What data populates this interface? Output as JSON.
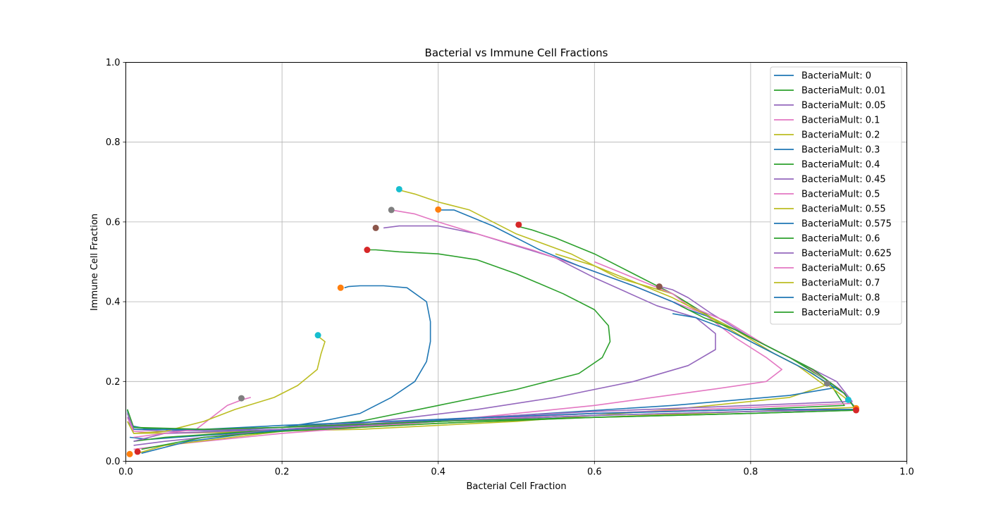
{
  "chart_data": {
    "type": "line",
    "title": "Bacterial vs Immune Cell Fractions",
    "xlabel": "Bacterial Cell Fraction",
    "ylabel": "Immune Cell Fraction",
    "xlim": [
      0,
      1
    ],
    "ylim": [
      0,
      1
    ],
    "xticks": [
      "0.0",
      "0.2",
      "0.4",
      "0.6",
      "0.8",
      "1.0"
    ],
    "yticks": [
      "0.0",
      "0.2",
      "0.4",
      "0.6",
      "0.8",
      "1.0"
    ],
    "grid": true,
    "legend_position": "upper right",
    "series": [
      {
        "name": "BacteriaMult: 0",
        "color": "#1f77b4"
      },
      {
        "name": "BacteriaMult: 0.01",
        "color": "#2ca02c"
      },
      {
        "name": "BacteriaMult: 0.05",
        "color": "#9467bd"
      },
      {
        "name": "BacteriaMult: 0.1",
        "color": "#e377c2"
      },
      {
        "name": "BacteriaMult: 0.2",
        "color": "#bcbd22"
      },
      {
        "name": "BacteriaMult: 0.3",
        "color": "#1f77b4"
      },
      {
        "name": "BacteriaMult: 0.4",
        "color": "#2ca02c"
      },
      {
        "name": "BacteriaMult: 0.45",
        "color": "#9467bd"
      },
      {
        "name": "BacteriaMult: 0.5",
        "color": "#e377c2"
      },
      {
        "name": "BacteriaMult: 0.55",
        "color": "#bcbd22"
      },
      {
        "name": "BacteriaMult: 0.575",
        "color": "#1f77b4"
      },
      {
        "name": "BacteriaMult: 0.6",
        "color": "#2ca02c"
      },
      {
        "name": "BacteriaMult: 0.625",
        "color": "#9467bd"
      },
      {
        "name": "BacteriaMult: 0.65",
        "color": "#e377c2"
      },
      {
        "name": "BacteriaMult: 0.7",
        "color": "#bcbd22"
      },
      {
        "name": "BacteriaMult: 0.8",
        "color": "#1f77b4"
      },
      {
        "name": "BacteriaMult: 0.9",
        "color": "#2ca02c"
      }
    ],
    "trajectories": [
      {
        "color": "#1f77b4",
        "points": [
          [
            0.002,
            0.13
          ],
          [
            0.005,
            0.09
          ],
          [
            0.03,
            0.08
          ],
          [
            0.1,
            0.077
          ],
          [
            0.15,
            0.079
          ],
          [
            0.2,
            0.085
          ],
          [
            0.25,
            0.1
          ],
          [
            0.3,
            0.12
          ],
          [
            0.34,
            0.16
          ],
          [
            0.37,
            0.2
          ],
          [
            0.385,
            0.25
          ],
          [
            0.39,
            0.3
          ],
          [
            0.39,
            0.35
          ],
          [
            0.385,
            0.4
          ],
          [
            0.36,
            0.435
          ],
          [
            0.33,
            0.44
          ],
          [
            0.3,
            0.44
          ],
          [
            0.285,
            0.438
          ],
          [
            0.28,
            0.435
          ]
        ]
      },
      {
        "color": "#2ca02c",
        "points": [
          [
            0.002,
            0.13
          ],
          [
            0.01,
            0.085
          ],
          [
            0.05,
            0.08
          ],
          [
            0.12,
            0.08
          ],
          [
            0.2,
            0.085
          ],
          [
            0.3,
            0.1
          ],
          [
            0.4,
            0.14
          ],
          [
            0.5,
            0.18
          ],
          [
            0.58,
            0.22
          ],
          [
            0.61,
            0.26
          ],
          [
            0.62,
            0.3
          ],
          [
            0.618,
            0.34
          ],
          [
            0.6,
            0.38
          ],
          [
            0.56,
            0.42
          ],
          [
            0.5,
            0.47
          ],
          [
            0.45,
            0.505
          ],
          [
            0.4,
            0.52
          ],
          [
            0.35,
            0.525
          ],
          [
            0.32,
            0.53
          ],
          [
            0.31,
            0.53
          ]
        ]
      },
      {
        "color": "#9467bd",
        "points": [
          [
            0.002,
            0.12
          ],
          [
            0.01,
            0.08
          ],
          [
            0.05,
            0.075
          ],
          [
            0.15,
            0.08
          ],
          [
            0.3,
            0.095
          ],
          [
            0.45,
            0.13
          ],
          [
            0.55,
            0.16
          ],
          [
            0.65,
            0.2
          ],
          [
            0.72,
            0.24
          ],
          [
            0.755,
            0.28
          ],
          [
            0.755,
            0.32
          ],
          [
            0.73,
            0.36
          ],
          [
            0.68,
            0.39
          ],
          [
            0.6,
            0.46
          ],
          [
            0.55,
            0.51
          ],
          [
            0.5,
            0.54
          ],
          [
            0.45,
            0.57
          ],
          [
            0.4,
            0.59
          ],
          [
            0.35,
            0.59
          ],
          [
            0.33,
            0.585
          ]
        ]
      },
      {
        "color": "#e377c2",
        "points": [
          [
            0.002,
            0.11
          ],
          [
            0.01,
            0.075
          ],
          [
            0.05,
            0.07
          ],
          [
            0.2,
            0.075
          ],
          [
            0.4,
            0.1
          ],
          [
            0.6,
            0.14
          ],
          [
            0.75,
            0.18
          ],
          [
            0.82,
            0.2
          ],
          [
            0.84,
            0.23
          ],
          [
            0.82,
            0.26
          ],
          [
            0.78,
            0.31
          ],
          [
            0.74,
            0.37
          ],
          [
            0.7,
            0.4
          ],
          [
            0.65,
            0.44
          ],
          [
            0.58,
            0.49
          ],
          [
            0.52,
            0.53
          ],
          [
            0.45,
            0.57
          ],
          [
            0.4,
            0.6
          ],
          [
            0.37,
            0.62
          ],
          [
            0.34,
            0.63
          ]
        ]
      },
      {
        "color": "#bcbd22",
        "points": [
          [
            0.002,
            0.1
          ],
          [
            0.01,
            0.07
          ],
          [
            0.1,
            0.072
          ],
          [
            0.3,
            0.08
          ],
          [
            0.5,
            0.1
          ],
          [
            0.7,
            0.13
          ],
          [
            0.85,
            0.16
          ],
          [
            0.895,
            0.19
          ],
          [
            0.86,
            0.24
          ],
          [
            0.8,
            0.3
          ],
          [
            0.74,
            0.37
          ],
          [
            0.7,
            0.42
          ],
          [
            0.63,
            0.46
          ],
          [
            0.57,
            0.52
          ],
          [
            0.5,
            0.57
          ],
          [
            0.44,
            0.63
          ],
          [
            0.4,
            0.65
          ],
          [
            0.37,
            0.67
          ],
          [
            0.35,
            0.68
          ]
        ]
      },
      {
        "color": "#1f77b4",
        "points": [
          [
            0.005,
            0.06
          ],
          [
            0.03,
            0.055
          ],
          [
            0.1,
            0.065
          ],
          [
            0.3,
            0.09
          ],
          [
            0.5,
            0.115
          ],
          [
            0.7,
            0.14
          ],
          [
            0.85,
            0.165
          ],
          [
            0.91,
            0.185
          ],
          [
            0.9,
            0.2
          ],
          [
            0.86,
            0.25
          ],
          [
            0.8,
            0.31
          ],
          [
            0.75,
            0.36
          ],
          [
            0.72,
            0.38
          ],
          [
            0.7,
            0.4
          ],
          [
            0.65,
            0.44
          ],
          [
            0.58,
            0.49
          ],
          [
            0.53,
            0.53
          ],
          [
            0.47,
            0.59
          ],
          [
            0.42,
            0.63
          ],
          [
            0.4,
            0.63
          ]
        ]
      },
      {
        "color": "#2ca02c",
        "points": [
          [
            0.01,
            0.05
          ],
          [
            0.05,
            0.06
          ],
          [
            0.2,
            0.08
          ],
          [
            0.4,
            0.1
          ],
          [
            0.6,
            0.12
          ],
          [
            0.8,
            0.13
          ],
          [
            0.92,
            0.14
          ],
          [
            0.9,
            0.2
          ],
          [
            0.85,
            0.26
          ],
          [
            0.8,
            0.31
          ],
          [
            0.75,
            0.36
          ],
          [
            0.7,
            0.42
          ],
          [
            0.65,
            0.47
          ],
          [
            0.6,
            0.52
          ],
          [
            0.55,
            0.56
          ],
          [
            0.52,
            0.58
          ],
          [
            0.5,
            0.59
          ]
        ]
      },
      {
        "color": "#9467bd",
        "points": [
          [
            0.01,
            0.04
          ],
          [
            0.05,
            0.05
          ],
          [
            0.2,
            0.08
          ],
          [
            0.4,
            0.105
          ],
          [
            0.6,
            0.125
          ],
          [
            0.8,
            0.14
          ],
          [
            0.93,
            0.15
          ],
          [
            0.91,
            0.2
          ],
          [
            0.86,
            0.25
          ],
          [
            0.8,
            0.31
          ],
          [
            0.75,
            0.37
          ],
          [
            0.72,
            0.41
          ],
          [
            0.7,
            0.43
          ],
          [
            0.68,
            0.44
          ]
        ]
      },
      {
        "color": "#e377c2",
        "points": [
          [
            0.01,
            0.03
          ],
          [
            0.05,
            0.04
          ],
          [
            0.2,
            0.07
          ],
          [
            0.4,
            0.1
          ],
          [
            0.6,
            0.12
          ],
          [
            0.8,
            0.135
          ],
          [
            0.93,
            0.145
          ],
          [
            0.915,
            0.18
          ],
          [
            0.87,
            0.24
          ],
          [
            0.82,
            0.29
          ],
          [
            0.77,
            0.35
          ],
          [
            0.72,
            0.39
          ],
          [
            0.7,
            0.42
          ],
          [
            0.65,
            0.46
          ],
          [
            0.6,
            0.5
          ]
        ]
      },
      {
        "color": "#bcbd22",
        "points": [
          [
            0.015,
            0.02
          ],
          [
            0.05,
            0.04
          ],
          [
            0.2,
            0.075
          ],
          [
            0.4,
            0.095
          ],
          [
            0.6,
            0.11
          ],
          [
            0.8,
            0.125
          ],
          [
            0.935,
            0.135
          ],
          [
            0.92,
            0.16
          ],
          [
            0.88,
            0.22
          ],
          [
            0.83,
            0.27
          ],
          [
            0.78,
            0.33
          ],
          [
            0.74,
            0.37
          ],
          [
            0.7,
            0.41
          ],
          [
            0.65,
            0.45
          ],
          [
            0.6,
            0.49
          ],
          [
            0.55,
            0.52
          ]
        ]
      },
      {
        "color": "#1f77b4",
        "points": [
          [
            0.02,
            0.02
          ],
          [
            0.08,
            0.05
          ],
          [
            0.2,
            0.08
          ],
          [
            0.4,
            0.1
          ],
          [
            0.6,
            0.115
          ],
          [
            0.8,
            0.125
          ],
          [
            0.935,
            0.13
          ],
          [
            0.92,
            0.17
          ],
          [
            0.87,
            0.23
          ],
          [
            0.82,
            0.28
          ],
          [
            0.77,
            0.33
          ],
          [
            0.73,
            0.36
          ],
          [
            0.7,
            0.37
          ]
        ]
      },
      {
        "color": "#2ca02c",
        "points": [
          [
            0.02,
            0.03
          ],
          [
            0.1,
            0.06
          ],
          [
            0.2,
            0.075
          ],
          [
            0.4,
            0.095
          ],
          [
            0.6,
            0.11
          ],
          [
            0.8,
            0.12
          ],
          [
            0.935,
            0.128
          ],
          [
            0.92,
            0.17
          ],
          [
            0.88,
            0.23
          ],
          [
            0.83,
            0.28
          ],
          [
            0.78,
            0.33
          ],
          [
            0.74,
            0.36
          ],
          [
            0.71,
            0.39
          ]
        ]
      },
      {
        "color": "#9467bd",
        "points": [
          [
            0.01,
            0.05
          ],
          [
            0.05,
            0.07
          ],
          [
            0.2,
            0.08
          ],
          [
            0.4,
            0.1
          ],
          [
            0.6,
            0.115
          ],
          [
            0.8,
            0.125
          ],
          [
            0.935,
            0.13
          ]
        ]
      },
      {
        "color": "#e377c2",
        "points": [
          [
            0.01,
            0.06
          ],
          [
            0.05,
            0.07
          ],
          [
            0.09,
            0.08
          ],
          [
            0.11,
            0.11
          ],
          [
            0.13,
            0.14
          ],
          [
            0.15,
            0.155
          ],
          [
            0.16,
            0.16
          ]
        ]
      },
      {
        "color": "#bcbd22",
        "points": [
          [
            0.01,
            0.07
          ],
          [
            0.05,
            0.075
          ],
          [
            0.1,
            0.1
          ],
          [
            0.14,
            0.13
          ],
          [
            0.19,
            0.16
          ],
          [
            0.22,
            0.19
          ],
          [
            0.245,
            0.23
          ],
          [
            0.25,
            0.27
          ],
          [
            0.255,
            0.3
          ],
          [
            0.245,
            0.315
          ]
        ]
      },
      {
        "color": "#1f77b4",
        "points": [
          [
            0.01,
            0.08
          ],
          [
            0.1,
            0.08
          ],
          [
            0.2,
            0.09
          ],
          [
            0.4,
            0.105
          ],
          [
            0.6,
            0.12
          ],
          [
            0.8,
            0.13
          ],
          [
            0.935,
            0.13
          ]
        ]
      },
      {
        "color": "#2ca02c",
        "points": [
          [
            0.01,
            0.085
          ],
          [
            0.1,
            0.08
          ],
          [
            0.2,
            0.085
          ],
          [
            0.4,
            0.1
          ],
          [
            0.6,
            0.11
          ],
          [
            0.8,
            0.12
          ],
          [
            0.935,
            0.128
          ]
        ]
      }
    ],
    "markers": [
      {
        "x": 0.005,
        "y": 0.018,
        "color": "#ff7f0e"
      },
      {
        "x": 0.015,
        "y": 0.024,
        "color": "#d62728"
      },
      {
        "x": 0.148,
        "y": 0.158,
        "color": "#7f7f7f"
      },
      {
        "x": 0.246,
        "y": 0.316,
        "color": "#17becf"
      },
      {
        "x": 0.275,
        "y": 0.435,
        "color": "#ff7f0e"
      },
      {
        "x": 0.309,
        "y": 0.53,
        "color": "#d62728"
      },
      {
        "x": 0.32,
        "y": 0.585,
        "color": "#8c564b"
      },
      {
        "x": 0.34,
        "y": 0.63,
        "color": "#7f7f7f"
      },
      {
        "x": 0.35,
        "y": 0.682,
        "color": "#17becf"
      },
      {
        "x": 0.4,
        "y": 0.631,
        "color": "#ff7f0e"
      },
      {
        "x": 0.503,
        "y": 0.593,
        "color": "#d62728"
      },
      {
        "x": 0.683,
        "y": 0.438,
        "color": "#8c564b"
      },
      {
        "x": 0.898,
        "y": 0.195,
        "color": "#7f7f7f"
      },
      {
        "x": 0.925,
        "y": 0.154,
        "color": "#17becf"
      },
      {
        "x": 0.935,
        "y": 0.133,
        "color": "#ff7f0e"
      },
      {
        "x": 0.935,
        "y": 0.128,
        "color": "#d62728"
      }
    ]
  }
}
